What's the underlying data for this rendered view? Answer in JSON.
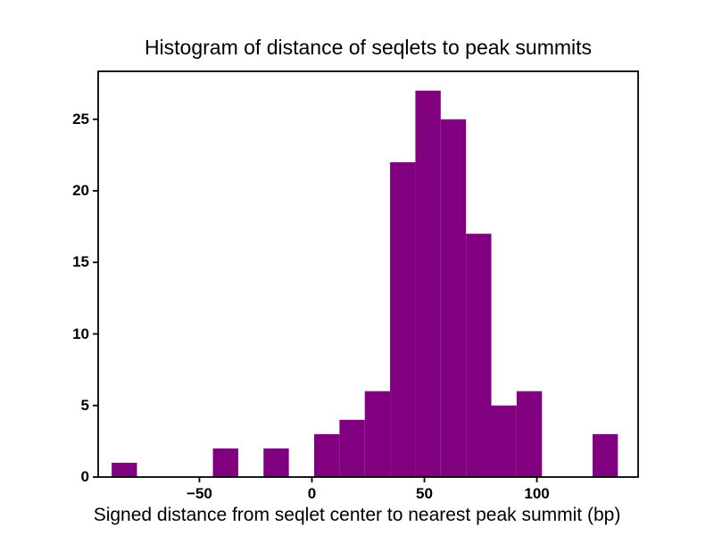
{
  "chart_data": {
    "type": "bar",
    "chart_kind": "histogram",
    "title": "Histogram of distance of seqlets to peak summits",
    "xlabel": "Signed distance from seqlet center to nearest peak summit (bp)",
    "ylabel": "",
    "bar_color": "#800080",
    "background_color": "#ffffff",
    "axis_color": "#000000",
    "grid": false,
    "legend": false,
    "xlim": [
      -95,
      145
    ],
    "ylim": [
      0,
      28.35
    ],
    "bin_edges": [
      -89.0,
      -77.75,
      -66.5,
      -55.25,
      -44.0,
      -32.75,
      -21.5,
      -10.25,
      1.0,
      12.25,
      23.5,
      34.75,
      46.0,
      57.25,
      68.5,
      79.75,
      91.0,
      102.25,
      113.5,
      124.75,
      136.0
    ],
    "counts": [
      1,
      0,
      0,
      0,
      2,
      0,
      2,
      0,
      3,
      4,
      6,
      22,
      27,
      25,
      17,
      5,
      6,
      0,
      0,
      3
    ],
    "x_ticks": [
      {
        "v": -50,
        "label": "−50"
      },
      {
        "v": 0,
        "label": "0"
      },
      {
        "v": 50,
        "label": "50"
      },
      {
        "v": 100,
        "label": "100"
      }
    ],
    "y_ticks": [
      {
        "v": 0,
        "label": "0"
      },
      {
        "v": 5,
        "label": "5"
      },
      {
        "v": 10,
        "label": "10"
      },
      {
        "v": 15,
        "label": "15"
      },
      {
        "v": 20,
        "label": "20"
      },
      {
        "v": 25,
        "label": "25"
      }
    ]
  }
}
